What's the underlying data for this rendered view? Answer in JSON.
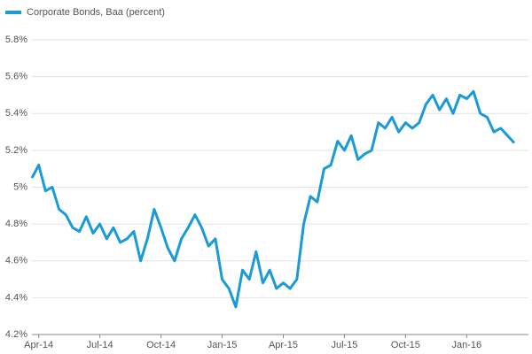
{
  "chart_data": {
    "type": "line",
    "categories": [
      null,
      "Apr-14",
      null,
      null,
      null,
      null,
      null,
      null,
      null,
      null,
      "Jul-14",
      null,
      null,
      null,
      null,
      null,
      null,
      null,
      null,
      "Oct-14",
      null,
      null,
      null,
      null,
      null,
      null,
      null,
      null,
      "Jan-15",
      null,
      null,
      null,
      null,
      null,
      null,
      null,
      null,
      "Apr-15",
      null,
      null,
      null,
      null,
      null,
      null,
      null,
      null,
      "Jul-15",
      null,
      null,
      null,
      null,
      null,
      null,
      null,
      null,
      "Oct-15",
      null,
      null,
      null,
      null,
      null,
      null,
      null,
      null,
      "Jan-16",
      null,
      null,
      null,
      null,
      null,
      null,
      null
    ],
    "series": [
      {
        "name": "Corporate Bonds, Baa (percent)",
        "color": "#1a9ad6",
        "values": [
          5.05,
          5.12,
          4.98,
          5.0,
          4.88,
          4.85,
          4.78,
          4.76,
          4.84,
          4.75,
          4.8,
          4.72,
          4.78,
          4.7,
          4.72,
          4.76,
          4.6,
          4.72,
          4.88,
          4.78,
          4.67,
          4.6,
          4.72,
          4.78,
          4.85,
          4.78,
          4.68,
          4.72,
          4.5,
          4.45,
          4.35,
          4.55,
          4.5,
          4.65,
          4.48,
          4.55,
          4.45,
          4.48,
          4.45,
          4.5,
          4.8,
          4.95,
          4.92,
          5.1,
          5.12,
          5.25,
          5.2,
          5.28,
          5.15,
          5.18,
          5.2,
          5.35,
          5.32,
          5.38,
          5.3,
          5.35,
          5.32,
          5.35,
          5.45,
          5.5,
          5.42,
          5.48,
          5.4,
          5.5,
          5.48,
          5.52,
          5.4,
          5.38,
          5.3,
          5.32,
          5.28,
          5.24
        ]
      }
    ],
    "ylim": [
      4.2,
      5.8
    ],
    "yticks": [
      {
        "value": 4.2,
        "label": "4.2%"
      },
      {
        "value": 4.4,
        "label": "4.4%"
      },
      {
        "value": 4.6,
        "label": "4.6%"
      },
      {
        "value": 4.8,
        "label": "4.8%"
      },
      {
        "value": 5,
        "label": "5%"
      },
      {
        "value": 5.2,
        "label": "5.2%"
      },
      {
        "value": 5.4,
        "label": "5.4%"
      },
      {
        "value": 5.6,
        "label": "5.6%"
      },
      {
        "value": 5.8,
        "label": "5.8%"
      }
    ],
    "grid": true,
    "legend": "top-left"
  }
}
